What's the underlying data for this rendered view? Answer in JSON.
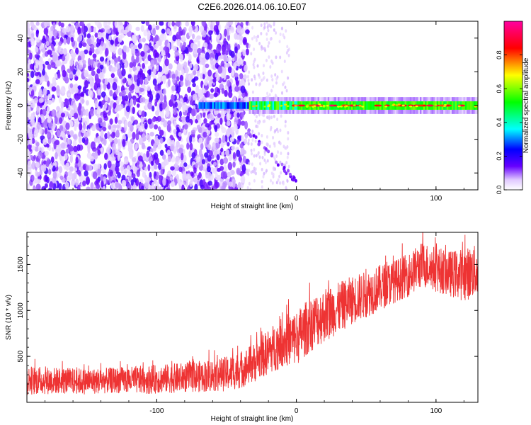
{
  "title": "C2E6.2026.014.06.10.E07",
  "chart_data": [
    {
      "type": "heatmap",
      "title": "C2E6.2026.014.06.10.E07",
      "xlabel": "Height of straight line (km)",
      "ylabel": "Frequency (Hz)",
      "xlim": [
        -193,
        130
      ],
      "ylim": [
        -50,
        50
      ],
      "x_ticks": [
        -100,
        0,
        100
      ],
      "x_tick_labels": [
        "-100",
        "0",
        "100"
      ],
      "y_ticks": [
        -40,
        -20,
        0,
        20,
        40
      ],
      "y_tick_labels": [
        "-40",
        "-20",
        "0",
        "20",
        "40"
      ],
      "colorbar": {
        "label": "Normalized spectral amplitude",
        "range": [
          0,
          1
        ],
        "ticks": [
          0,
          0.2,
          0.4,
          0.6,
          0.8
        ],
        "tick_labels": [
          "0.0",
          "0.2",
          "0.4",
          "0.6",
          "0.8"
        ],
        "colors": [
          "#ffffff",
          "#6600ff",
          "#0000ff",
          "#00ffff",
          "#00ff00",
          "#ffff00",
          "#ff0000",
          "#ff00a0"
        ]
      },
      "features": {
        "noise_region_x": [
          -193,
          -35
        ],
        "noise_amplitude_range": [
          0.05,
          0.2
        ],
        "carrier_line_x": [
          -70,
          130
        ],
        "carrier_freq_hz": 0,
        "carrier_amplitude_range": [
          0.5,
          0.95
        ],
        "diagonal_streak": {
          "x": [
            -35,
            0
          ],
          "freq_hz": [
            -15,
            -45
          ]
        }
      }
    },
    {
      "type": "line",
      "xlabel": "Height of straight line (km)",
      "ylabel": "SNR (10 * v/v)",
      "xlim": [
        -193,
        130
      ],
      "ylim": [
        0,
        1850
      ],
      "x_ticks": [
        -100,
        0,
        100
      ],
      "x_tick_labels": [
        "-100",
        "0",
        "100"
      ],
      "y_ticks": [
        500,
        1000,
        1500
      ],
      "y_tick_labels": [
        "500",
        "1000",
        "1500"
      ],
      "color": "#ee3333",
      "series": [
        {
          "name": "SNR",
          "x": [
            -193,
            -170,
            -150,
            -130,
            -110,
            -90,
            -70,
            -50,
            -40,
            -30,
            -20,
            -10,
            0,
            10,
            20,
            30,
            40,
            50,
            60,
            70,
            80,
            90,
            100,
            110,
            120,
            130
          ],
          "y_low": [
            80,
            90,
            85,
            100,
            90,
            100,
            110,
            120,
            150,
            220,
            300,
            380,
            400,
            550,
            650,
            750,
            850,
            920,
            1000,
            1080,
            1150,
            1250,
            1200,
            1150,
            1100,
            1150
          ],
          "y_high": [
            400,
            380,
            370,
            380,
            400,
            420,
            450,
            500,
            560,
            650,
            800,
            950,
            1000,
            1150,
            1250,
            1300,
            1380,
            1430,
            1500,
            1550,
            1620,
            1750,
            1700,
            1650,
            1680,
            1720
          ]
        }
      ]
    }
  ]
}
